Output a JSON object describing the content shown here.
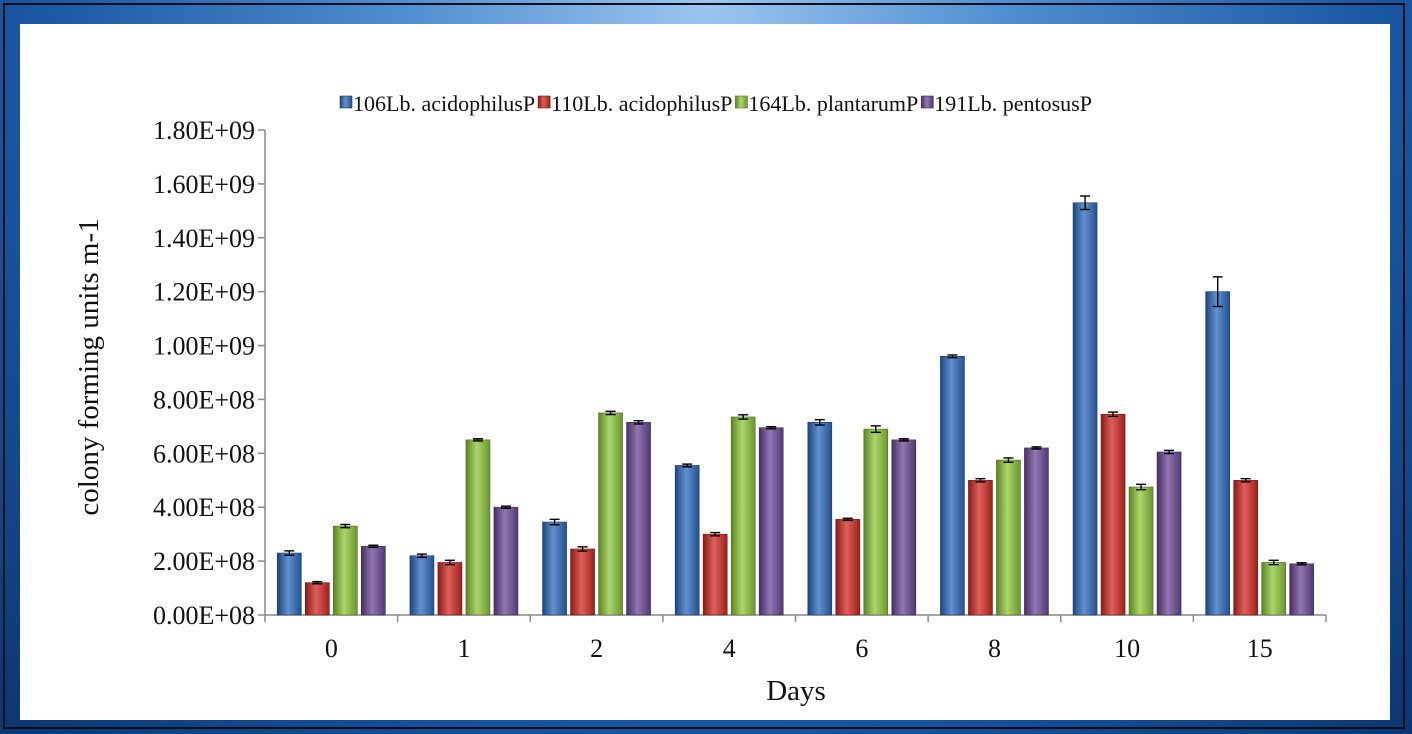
{
  "chart_data": {
    "type": "bar",
    "title": "",
    "xlabel": "Days",
    "ylabel": "colony forming units m-1",
    "categories": [
      "0",
      "1",
      "2",
      "4",
      "6",
      "8",
      "10",
      "15"
    ],
    "y_tick_labels": [
      "0.00E+08",
      "2.00E+08",
      "4.00E+08",
      "6.00E+08",
      "8.00E+08",
      "1.00E+09",
      "1.20E+09",
      "1.40E+09",
      "1.60E+09",
      "1.80E+09"
    ],
    "ylim": [
      0,
      1800000000
    ],
    "y_tick_step": 200000000,
    "grid": false,
    "legend_position": "top",
    "error_bars": true,
    "series": [
      {
        "name": "106Lb. acidophilusP",
        "color": "#2e6cc0",
        "values": [
          230000000,
          220000000,
          345000000,
          555000000,
          715000000,
          960000000,
          1530000000,
          1200000000
        ],
        "errors": [
          8000000,
          6000000,
          10000000,
          5000000,
          10000000,
          5000000,
          25000000,
          55000000
        ]
      },
      {
        "name": "110Lb. acidophilusP",
        "color": "#d42b24",
        "values": [
          120000000,
          195000000,
          245000000,
          300000000,
          355000000,
          500000000,
          745000000,
          500000000
        ],
        "errors": [
          4000000,
          8000000,
          8000000,
          6000000,
          4000000,
          6000000,
          8000000,
          6000000
        ]
      },
      {
        "name": "164Lb. plantarumP",
        "color": "#8fc83a",
        "values": [
          330000000,
          650000000,
          750000000,
          735000000,
          690000000,
          575000000,
          475000000,
          195000000
        ],
        "errors": [
          6000000,
          4000000,
          6000000,
          8000000,
          12000000,
          8000000,
          10000000,
          8000000
        ]
      },
      {
        "name": "191Lb. pentosusP",
        "color": "#6d4a9a",
        "values": [
          255000000,
          400000000,
          715000000,
          695000000,
          650000000,
          620000000,
          605000000,
          190000000
        ],
        "errors": [
          4000000,
          4000000,
          6000000,
          4000000,
          4000000,
          4000000,
          6000000,
          4000000
        ]
      }
    ]
  }
}
